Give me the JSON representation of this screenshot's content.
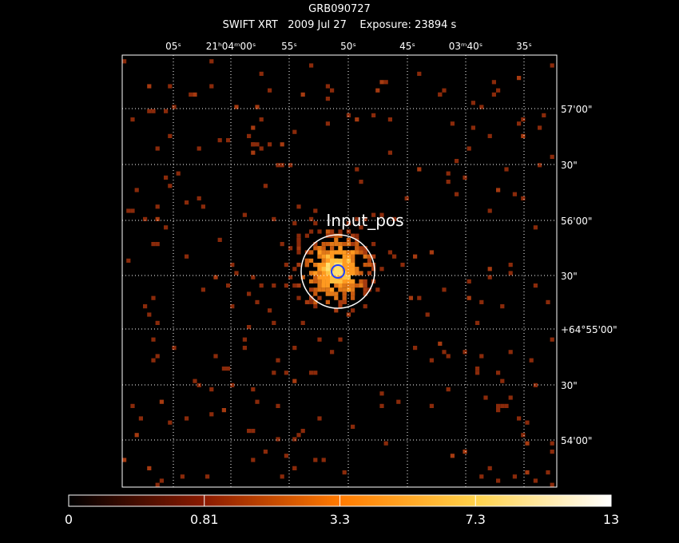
{
  "header": {
    "title": "GRB090727",
    "subtitle": "SWIFT XRT   2009 Jul 27    Exposure: 23894 s"
  },
  "ra_ticks": [
    "05ˢ",
    "21ʰ04ᵐ00ˢ",
    "55ˢ",
    "50ˢ",
    "45ˢ",
    "03ᵐ40ˢ",
    "35ˢ"
  ],
  "dec_ticks": [
    "57'00\"",
    "30\"",
    "56'00\"",
    "30\"",
    "+64°55'00\"",
    "30\"",
    "54'00\""
  ],
  "annotation": "Input_pos",
  "colorbar": {
    "ticks": [
      0,
      0.81,
      3.3,
      7.3,
      13
    ]
  }
}
